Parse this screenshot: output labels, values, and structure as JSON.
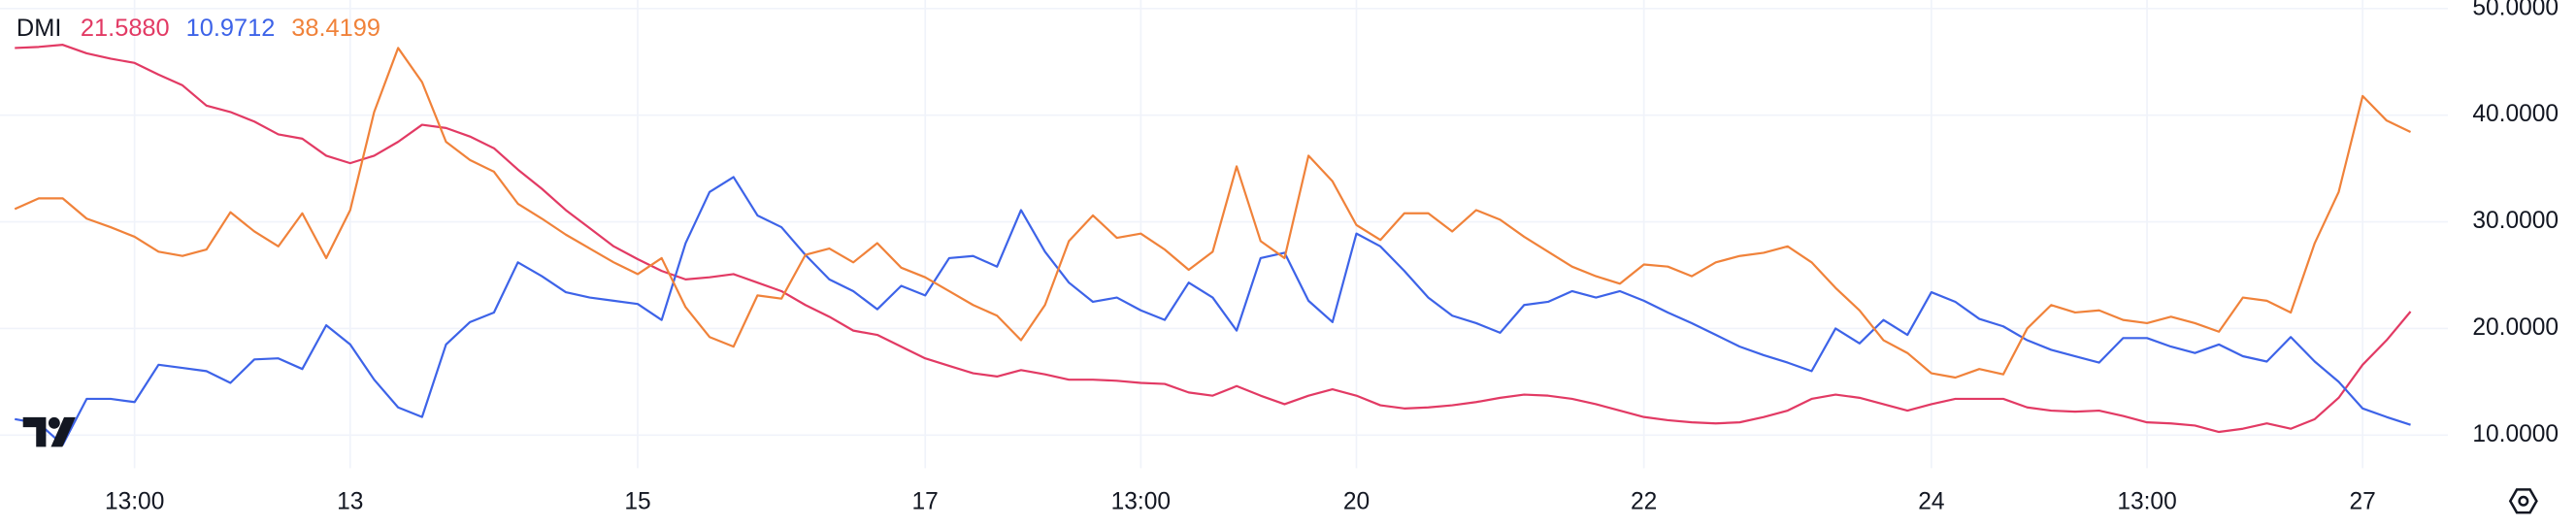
{
  "chart_data": {
    "type": "line",
    "title": "DMI",
    "categories": [
      null,
      null,
      null,
      null,
      null,
      "13:00",
      null,
      null,
      null,
      null,
      null,
      null,
      null,
      null,
      "13",
      null,
      null,
      null,
      null,
      null,
      null,
      null,
      null,
      null,
      null,
      null,
      "15",
      null,
      null,
      null,
      null,
      null,
      null,
      null,
      null,
      null,
      null,
      null,
      "17",
      null,
      null,
      null,
      null,
      null,
      null,
      null,
      null,
      "13:00",
      null,
      null,
      null,
      null,
      null,
      null,
      null,
      null,
      "20",
      null,
      null,
      null,
      null,
      null,
      null,
      null,
      null,
      null,
      null,
      null,
      "22",
      null,
      null,
      null,
      null,
      null,
      null,
      null,
      null,
      null,
      null,
      null,
      "24",
      null,
      null,
      null,
      null,
      null,
      null,
      null,
      null,
      "13:00",
      null,
      null,
      null,
      null,
      null,
      null,
      null,
      null,
      "27",
      null,
      null
    ],
    "series": [
      {
        "color": "#e23a64",
        "last_label": "21.5880",
        "values": [
          46.3,
          46.4,
          46.6,
          45.8,
          45.3,
          44.9,
          43.8,
          42.8,
          40.9,
          40.3,
          39.4,
          38.2,
          37.8,
          36.2,
          35.5,
          36.2,
          37.5,
          39.1,
          38.8,
          38,
          36.9,
          34.9,
          33.1,
          31.1,
          29.4,
          27.7,
          26.5,
          25.4,
          24.6,
          24.8,
          25.1,
          24.3,
          23.5,
          22.2,
          21.1,
          19.8,
          19.4,
          18.3,
          17.2,
          16.5,
          15.8,
          15.5,
          16.1,
          15.7,
          15.2,
          15.2,
          15.1,
          14.9,
          14.8,
          14.0,
          13.7,
          14.6,
          13.7,
          12.9,
          13.7,
          14.3,
          13.7,
          12.8,
          12.5,
          12.6,
          12.8,
          13.1,
          13.5,
          13.8,
          13.7,
          13.4,
          12.9,
          12.3,
          11.7,
          11.4,
          11.2,
          11.1,
          11.2,
          11.7,
          12.3,
          13.4,
          13.8,
          13.5,
          12.9,
          12.3,
          12.9,
          13.4,
          13.4,
          13.4,
          12.6,
          12.3,
          12.2,
          12.3,
          11.8,
          11.2,
          11.1,
          10.9,
          10.3,
          10.6,
          11.1,
          10.6,
          11.5,
          13.5,
          16.6,
          18.9,
          21.588
        ]
      },
      {
        "color": "#3d63e8",
        "last_label": "10.9712",
        "values": [
          11.5,
          11.1,
          9.1,
          13.4,
          13.4,
          13.1,
          16.6,
          16.3,
          16,
          14.9,
          17.1,
          17.2,
          16.2,
          20.3,
          18.5,
          15.2,
          12.6,
          11.7,
          18.5,
          20.6,
          21.5,
          26.2,
          24.9,
          23.4,
          22.9,
          22.6,
          22.3,
          20.8,
          28,
          32.8,
          34.2,
          30.6,
          29.5,
          26.9,
          24.6,
          23.5,
          21.8,
          24,
          23.1,
          26.6,
          26.8,
          25.8,
          31.1,
          27.2,
          24.3,
          22.5,
          22.9,
          21.7,
          20.8,
          24.3,
          22.9,
          19.8,
          26.6,
          27.1,
          22.6,
          20.6,
          28.9,
          27.7,
          25.4,
          22.9,
          21.2,
          20.5,
          19.6,
          22.2,
          22.5,
          23.5,
          22.9,
          23.5,
          22.6,
          21.5,
          20.5,
          19.4,
          18.3,
          17.5,
          16.8,
          16,
          20,
          18.6,
          20.8,
          19.4,
          23.4,
          22.5,
          20.9,
          20.2,
          18.9,
          18,
          17.4,
          16.8,
          19.1,
          19.1,
          18.3,
          17.7,
          18.5,
          17.4,
          16.9,
          19.2,
          16.9,
          15,
          12.5,
          11.7,
          10.9712
        ]
      },
      {
        "color": "#f0823a",
        "last_label": "38.4199",
        "values": [
          31.2,
          32.2,
          32.2,
          30.3,
          29.5,
          28.6,
          27.2,
          26.8,
          27.4,
          30.9,
          29.1,
          27.7,
          30.8,
          26.6,
          31.1,
          40.3,
          46.3,
          43.1,
          37.5,
          35.8,
          34.7,
          31.7,
          30.3,
          28.8,
          27.5,
          26.2,
          25.1,
          26.6,
          22,
          19.2,
          18.3,
          23.1,
          22.8,
          26.9,
          27.5,
          26.2,
          28,
          25.7,
          24.8,
          23.5,
          22.2,
          21.2,
          18.9,
          22.2,
          28.2,
          30.6,
          28.5,
          28.9,
          27.4,
          25.5,
          27.2,
          35.2,
          28.2,
          26.6,
          36.2,
          33.8,
          29.7,
          28.3,
          30.8,
          30.8,
          29.1,
          31.1,
          30.2,
          28.6,
          27.2,
          25.8,
          24.9,
          24.2,
          26,
          25.8,
          24.9,
          26.2,
          26.8,
          27.1,
          27.7,
          26.2,
          23.8,
          21.7,
          18.9,
          17.7,
          15.8,
          15.4,
          16.2,
          15.7,
          20,
          22.2,
          21.5,
          21.7,
          20.8,
          20.5,
          21.1,
          20.5,
          19.7,
          22.9,
          22.6,
          21.5,
          28,
          32.8,
          41.8,
          39.5,
          38.4199
        ]
      }
    ],
    "ylim": [
      6.9,
      50.8
    ],
    "yticks": [
      {
        "value": 10,
        "label": "10.0000"
      },
      {
        "value": 20,
        "label": "20.0000"
      },
      {
        "value": 30,
        "label": "30.0000"
      },
      {
        "value": 40,
        "label": "40.0000"
      },
      {
        "value": 50,
        "label": "50.0000"
      }
    ],
    "grid": true
  }
}
